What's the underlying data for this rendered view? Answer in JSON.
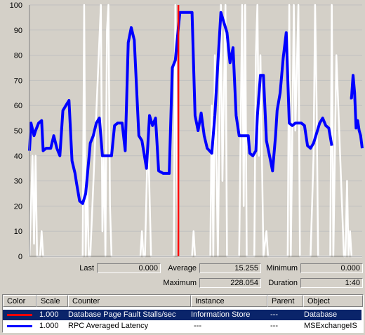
{
  "colors": {
    "graph_bg": "#d4d0c8",
    "grid": "#c0c0c0",
    "time_bar": "#ff0000",
    "selected_row": "#0a246a"
  },
  "chart_data": {
    "type": "line",
    "ylim": [
      0,
      100
    ],
    "yticks": [
      0,
      10,
      20,
      30,
      40,
      50,
      60,
      70,
      80,
      90,
      100
    ],
    "grid": true,
    "time_bar_at_sample": 98,
    "total_samples": 220,
    "series": [
      {
        "name": "Database Page Fault Stalls/sec",
        "color": "#ffffff",
        "x": [
          0,
          2,
          3,
          4,
          5,
          7,
          8,
          9,
          10,
          35,
          36,
          37,
          38,
          39,
          40,
          47,
          48,
          49,
          50,
          51,
          52,
          53,
          54,
          73,
          74,
          75,
          76,
          78,
          80,
          95,
          96,
          97,
          98,
          107,
          108,
          109,
          111,
          119,
          120,
          121,
          122,
          124,
          126,
          127,
          129,
          130,
          131,
          138,
          140,
          141,
          142,
          143,
          145,
          148,
          149,
          150,
          151,
          152,
          154,
          156,
          157,
          158,
          170,
          171,
          172,
          174,
          175,
          177,
          178,
          185,
          187,
          188,
          189,
          190,
          198,
          199,
          200,
          202,
          207,
          208,
          209,
          210,
          211,
          212,
          219
        ],
        "y": [
          0,
          40,
          5,
          40,
          0,
          0,
          10,
          0,
          0,
          0,
          100,
          0,
          30,
          0,
          0,
          100,
          10,
          40,
          0,
          90,
          100,
          20,
          0,
          0,
          10,
          0,
          0,
          50,
          0,
          0,
          100,
          40,
          0,
          0,
          10,
          0,
          0,
          0,
          60,
          0,
          80,
          0,
          100,
          30,
          100,
          0,
          0,
          0,
          100,
          20,
          100,
          0,
          0,
          0,
          80,
          100,
          40,
          80,
          0,
          10,
          0,
          0,
          0,
          100,
          0,
          100,
          50,
          100,
          0,
          0,
          40,
          100,
          60,
          0,
          0,
          100,
          0,
          80,
          0,
          0,
          30,
          0,
          10,
          0,
          0
        ]
      },
      {
        "name": "RPC Averaged Latency",
        "color": "#0000ff",
        "segments": [
          {
            "x": [
              0,
              1,
              3,
              4,
              6,
              8,
              9,
              11,
              13,
              14,
              16,
              18,
              20,
              22,
              24,
              26,
              28,
              30,
              31,
              33,
              35,
              37,
              40,
              42,
              44,
              46,
              48,
              50,
              52,
              54,
              56,
              58,
              61,
              63,
              65,
              67,
              69,
              72,
              74,
              77,
              79,
              81,
              83,
              85,
              88,
              90,
              92,
              94,
              96,
              98,
              99,
              101,
              103,
              105,
              107,
              109,
              111,
              113,
              115,
              117,
              120,
              122,
              124,
              126,
              128,
              130,
              132,
              134,
              136,
              138,
              140,
              142,
              144,
              145,
              147,
              149,
              150,
              152,
              154,
              156,
              158,
              160,
              162,
              163,
              165,
              167,
              169,
              171,
              173,
              175,
              177,
              179,
              181,
              183,
              185,
              187,
              189,
              191,
              193,
              195,
              197,
              199
            ],
            "y": [
              42,
              53,
              48,
              50,
              53,
              54,
              42,
              43,
              43,
              43,
              48,
              43,
              40,
              58,
              60,
              62,
              38,
              33,
              29,
              22,
              21,
              25,
              45,
              48,
              53,
              55,
              40,
              40,
              40,
              40,
              52,
              53,
              53,
              42,
              85,
              91,
              86,
              48,
              46,
              35,
              56,
              52,
              55,
              34,
              33,
              33,
              33,
              75,
              78,
              91,
              97,
              97,
              97,
              97,
              97,
              56,
              50,
              57,
              48,
              43,
              41,
              56,
              77,
              97,
              93,
              89,
              77,
              83,
              56,
              48,
              48,
              48,
              48,
              41,
              40,
              42,
              56,
              72,
              72,
              46,
              40,
              34,
              48,
              58,
              65,
              79,
              89,
              53,
              52,
              53,
              53,
              53,
              52,
              44,
              43,
              45,
              49,
              53,
              55,
              52,
              51,
              44
            ]
          },
          {
            "x": [
              211,
              212,
              213,
              214,
              215,
              216,
              217,
              218,
              219
            ],
            "y": [
              63,
              63,
              72,
              65,
              51,
              54,
              50,
              48,
              43
            ]
          }
        ]
      }
    ]
  },
  "stats": {
    "last_label": "Last",
    "last_value": "0.000",
    "average_label": "Average",
    "average_value": "15.255",
    "minimum_label": "Minimum",
    "minimum_value": "0.000",
    "maximum_label": "Maximum",
    "maximum_value": "228.054",
    "duration_label": "Duration",
    "duration_value": "1:40"
  },
  "legend": {
    "headers": {
      "color": "Color",
      "scale": "Scale",
      "counter": "Counter",
      "instance": "Instance",
      "parent": "Parent",
      "object": "Object"
    },
    "rows": [
      {
        "color": "#ff0000",
        "scale": "1.000",
        "counter": "Database Page Fault Stalls/sec",
        "instance": "Information Store",
        "parent": "---",
        "object": "Database",
        "selected": true
      },
      {
        "color": "#0000ff",
        "scale": "1.000",
        "counter": "RPC Averaged Latency",
        "instance": "---",
        "parent": "---",
        "object": "MSExchangeIS",
        "selected": false
      }
    ]
  }
}
